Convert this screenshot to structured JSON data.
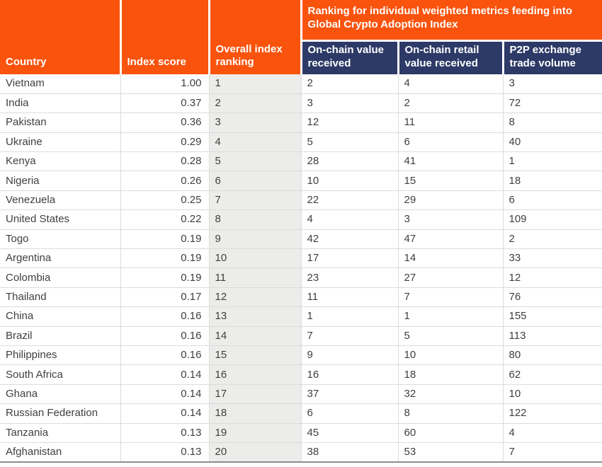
{
  "colors": {
    "orange": "#F9530D",
    "navy": "#2D3A67",
    "rank_col_bg": "#ECECEA",
    "grid_line": "#DCDCDC",
    "bottom_border": "#8C8C8C",
    "text": "#3F3F3F",
    "header_text": "#FFFFFF"
  },
  "chart_data": {
    "type": "table",
    "title": "Global Crypto Adoption Index ranking table",
    "header": {
      "country": "Country",
      "index_score": "Index score",
      "overall_index_ranking": "Overall index ranking",
      "metrics_group_title": "Ranking for individual weighted metrics feeding into Global Crypto Adoption Index",
      "on_chain_value_received": "On-chain value received",
      "on_chain_retail_value_received": "On-chain retail value received",
      "p2p_exchange_trade_volume": "P2P exchange trade volume"
    },
    "rows": [
      {
        "country": "Vietnam",
        "index_score": "1.00",
        "overall_index_ranking": "1",
        "on_chain_value_received": "2",
        "on_chain_retail_value_received": "4",
        "p2p_exchange_trade_volume": "3"
      },
      {
        "country": "India",
        "index_score": "0.37",
        "overall_index_ranking": "2",
        "on_chain_value_received": "3",
        "on_chain_retail_value_received": "2",
        "p2p_exchange_trade_volume": "72"
      },
      {
        "country": "Pakistan",
        "index_score": "0.36",
        "overall_index_ranking": "3",
        "on_chain_value_received": "12",
        "on_chain_retail_value_received": "11",
        "p2p_exchange_trade_volume": "8"
      },
      {
        "country": "Ukraine",
        "index_score": "0.29",
        "overall_index_ranking": "4",
        "on_chain_value_received": "5",
        "on_chain_retail_value_received": "6",
        "p2p_exchange_trade_volume": "40"
      },
      {
        "country": "Kenya",
        "index_score": "0.28",
        "overall_index_ranking": "5",
        "on_chain_value_received": "28",
        "on_chain_retail_value_received": "41",
        "p2p_exchange_trade_volume": "1"
      },
      {
        "country": "Nigeria",
        "index_score": "0.26",
        "overall_index_ranking": "6",
        "on_chain_value_received": "10",
        "on_chain_retail_value_received": "15",
        "p2p_exchange_trade_volume": "18"
      },
      {
        "country": "Venezuela",
        "index_score": "0.25",
        "overall_index_ranking": "7",
        "on_chain_value_received": "22",
        "on_chain_retail_value_received": "29",
        "p2p_exchange_trade_volume": "6"
      },
      {
        "country": "United States",
        "index_score": "0.22",
        "overall_index_ranking": "8",
        "on_chain_value_received": "4",
        "on_chain_retail_value_received": "3",
        "p2p_exchange_trade_volume": "109"
      },
      {
        "country": "Togo",
        "index_score": "0.19",
        "overall_index_ranking": "9",
        "on_chain_value_received": "42",
        "on_chain_retail_value_received": "47",
        "p2p_exchange_trade_volume": "2"
      },
      {
        "country": "Argentina",
        "index_score": "0.19",
        "overall_index_ranking": "10",
        "on_chain_value_received": "17",
        "on_chain_retail_value_received": "14",
        "p2p_exchange_trade_volume": "33"
      },
      {
        "country": "Colombia",
        "index_score": "0.19",
        "overall_index_ranking": "11",
        "on_chain_value_received": "23",
        "on_chain_retail_value_received": "27",
        "p2p_exchange_trade_volume": "12"
      },
      {
        "country": "Thailand",
        "index_score": "0.17",
        "overall_index_ranking": "12",
        "on_chain_value_received": "11",
        "on_chain_retail_value_received": "7",
        "p2p_exchange_trade_volume": "76"
      },
      {
        "country": "China",
        "index_score": "0.16",
        "overall_index_ranking": "13",
        "on_chain_value_received": "1",
        "on_chain_retail_value_received": "1",
        "p2p_exchange_trade_volume": "155"
      },
      {
        "country": "Brazil",
        "index_score": "0.16",
        "overall_index_ranking": "14",
        "on_chain_value_received": "7",
        "on_chain_retail_value_received": "5",
        "p2p_exchange_trade_volume": "113"
      },
      {
        "country": "Philippines",
        "index_score": "0.16",
        "overall_index_ranking": "15",
        "on_chain_value_received": "9",
        "on_chain_retail_value_received": "10",
        "p2p_exchange_trade_volume": "80"
      },
      {
        "country": "South Africa",
        "index_score": "0.14",
        "overall_index_ranking": "16",
        "on_chain_value_received": "16",
        "on_chain_retail_value_received": "18",
        "p2p_exchange_trade_volume": "62"
      },
      {
        "country": "Ghana",
        "index_score": "0.14",
        "overall_index_ranking": "17",
        "on_chain_value_received": "37",
        "on_chain_retail_value_received": "32",
        "p2p_exchange_trade_volume": "10"
      },
      {
        "country": "Russian Federation",
        "index_score": "0.14",
        "overall_index_ranking": "18",
        "on_chain_value_received": "6",
        "on_chain_retail_value_received": "8",
        "p2p_exchange_trade_volume": "122"
      },
      {
        "country": "Tanzania",
        "index_score": "0.13",
        "overall_index_ranking": "19",
        "on_chain_value_received": "45",
        "on_chain_retail_value_received": "60",
        "p2p_exchange_trade_volume": "4"
      },
      {
        "country": "Afghanistan",
        "index_score": "0.13",
        "overall_index_ranking": "20",
        "on_chain_value_received": "38",
        "on_chain_retail_value_received": "53",
        "p2p_exchange_trade_volume": "7"
      }
    ]
  }
}
